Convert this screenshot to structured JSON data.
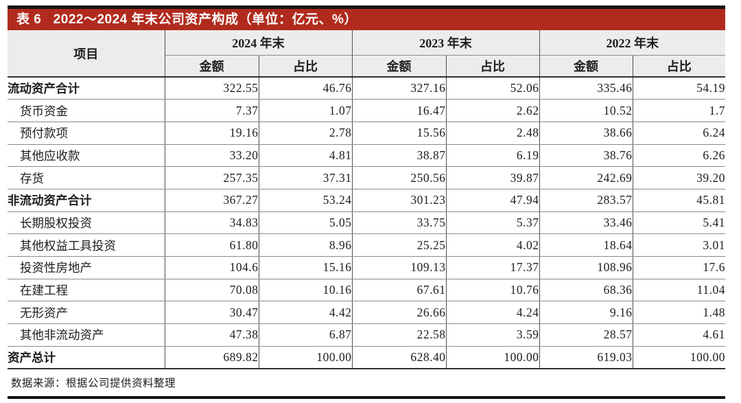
{
  "title_bar": {
    "label": "表 6   2022～2024 年末公司资产构成（单位：亿元、%）"
  },
  "table": {
    "item_header": "项目",
    "year_groups": [
      {
        "label": "2024 年末"
      },
      {
        "label": "2023 年末"
      },
      {
        "label": "2022 年末"
      }
    ],
    "sub_headers": {
      "amount": "金额",
      "share": "占比"
    },
    "rows": [
      {
        "label": "流动资产合计",
        "bold": true,
        "indent": false,
        "values": [
          "322.55",
          "46.76",
          "327.16",
          "52.06",
          "335.46",
          "54.19"
        ]
      },
      {
        "label": "货币资金",
        "bold": false,
        "indent": true,
        "values": [
          "7.37",
          "1.07",
          "16.47",
          "2.62",
          "10.52",
          "1.7"
        ]
      },
      {
        "label": "预付款项",
        "bold": false,
        "indent": true,
        "values": [
          "19.16",
          "2.78",
          "15.56",
          "2.48",
          "38.66",
          "6.24"
        ]
      },
      {
        "label": "其他应收款",
        "bold": false,
        "indent": true,
        "values": [
          "33.20",
          "4.81",
          "38.87",
          "6.19",
          "38.76",
          "6.26"
        ]
      },
      {
        "label": "存货",
        "bold": false,
        "indent": true,
        "values": [
          "257.35",
          "37.31",
          "250.56",
          "39.87",
          "242.69",
          "39.20"
        ]
      },
      {
        "label": "非流动资产合计",
        "bold": true,
        "indent": false,
        "values": [
          "367.27",
          "53.24",
          "301.23",
          "47.94",
          "283.57",
          "45.81"
        ]
      },
      {
        "label": "长期股权投资",
        "bold": false,
        "indent": true,
        "values": [
          "34.83",
          "5.05",
          "33.75",
          "5.37",
          "33.46",
          "5.41"
        ]
      },
      {
        "label": "其他权益工具投资",
        "bold": false,
        "indent": true,
        "values": [
          "61.80",
          "8.96",
          "25.25",
          "4.02",
          "18.64",
          "3.01"
        ]
      },
      {
        "label": "投资性房地产",
        "bold": false,
        "indent": true,
        "values": [
          "104.6",
          "15.16",
          "109.13",
          "17.37",
          "108.96",
          "17.6"
        ]
      },
      {
        "label": "在建工程",
        "bold": false,
        "indent": true,
        "values": [
          "70.08",
          "10.16",
          "67.61",
          "10.76",
          "68.36",
          "11.04"
        ]
      },
      {
        "label": "无形资产",
        "bold": false,
        "indent": true,
        "values": [
          "30.47",
          "4.42",
          "26.66",
          "4.24",
          "9.16",
          "1.48"
        ]
      },
      {
        "label": "其他非流动资产",
        "bold": false,
        "indent": true,
        "values": [
          "47.38",
          "6.87",
          "22.58",
          "3.59",
          "28.57",
          "4.61"
        ]
      },
      {
        "label": "资产总计",
        "bold": true,
        "indent": false,
        "values": [
          "689.82",
          "100.00",
          "628.40",
          "100.00",
          "619.03",
          "100.00"
        ]
      }
    ],
    "source_note": "数据来源：根据公司提供资料整理"
  },
  "colors": {
    "title_bar_bg": "#b02b1e",
    "top_strip": "#171513",
    "header_bg": "#ececea",
    "text": "#1d1d1d"
  }
}
